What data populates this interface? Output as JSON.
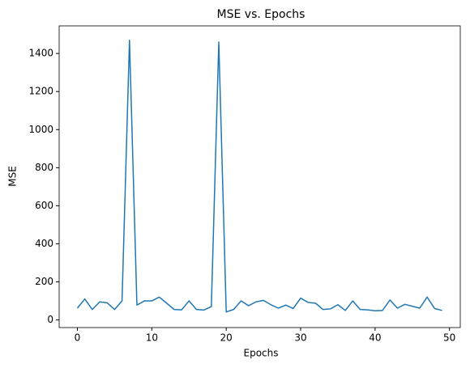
{
  "chart_data": {
    "type": "line",
    "title": "MSE vs. Epochs",
    "x_label": "Epochs",
    "y_label": "MSE",
    "x": [
      0,
      1,
      2,
      3,
      4,
      5,
      6,
      7,
      8,
      9,
      10,
      11,
      12,
      13,
      14,
      15,
      16,
      17,
      18,
      19,
      20,
      21,
      22,
      23,
      24,
      25,
      26,
      27,
      28,
      29,
      30,
      31,
      32,
      33,
      34,
      35,
      36,
      37,
      38,
      39,
      40,
      41,
      42,
      43,
      44,
      45,
      46,
      47,
      48,
      49
    ],
    "series": [
      {
        "name": "MSE",
        "color": "#1f77b4",
        "values": [
          62,
          110,
          55,
          95,
          90,
          55,
          100,
          1470,
          78,
          100,
          100,
          120,
          88,
          55,
          53,
          100,
          55,
          52,
          70,
          1460,
          42,
          55,
          100,
          75,
          95,
          103,
          80,
          62,
          78,
          60,
          115,
          92,
          88,
          55,
          58,
          80,
          50,
          100,
          55,
          53,
          48,
          50,
          105,
          62,
          82,
          72,
          62,
          120,
          60,
          50
        ]
      }
    ],
    "xlim": [
      -2.45,
      51.45
    ],
    "xticks": [
      0,
      10,
      20,
      30,
      40,
      50
    ],
    "ylim": [
      -40,
      1545
    ],
    "yticks": [
      0,
      200,
      400,
      600,
      800,
      1000,
      1200,
      1400
    ],
    "grid": false
  }
}
